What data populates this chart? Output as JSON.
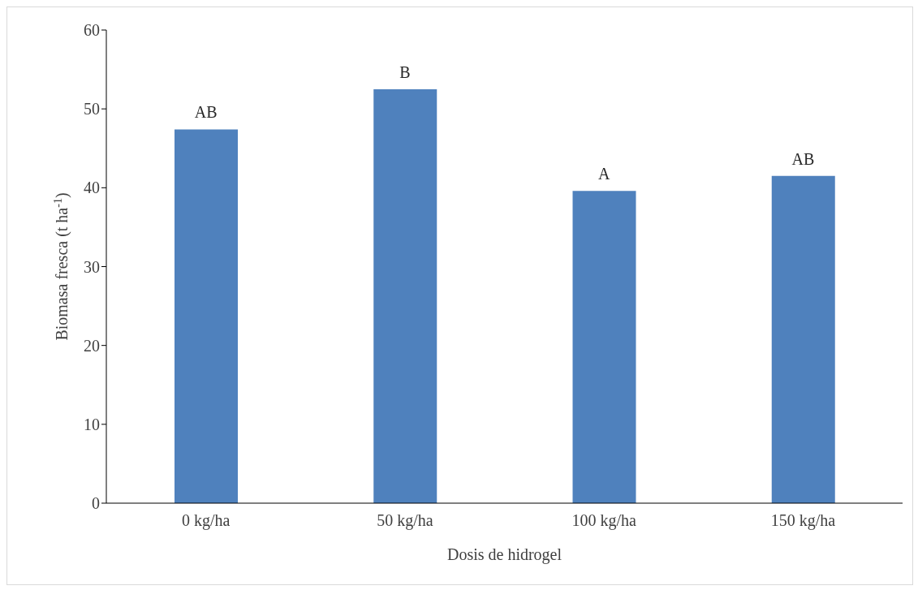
{
  "chart_data": {
    "type": "bar",
    "categories": [
      "0 kg/ha",
      "50 kg/ha",
      "100 kg/ha",
      "150 kg/ha"
    ],
    "values": [
      47.4,
      52.5,
      39.6,
      41.5
    ],
    "color": "#4f81bd",
    "xlabel": "Dosis de hidrogel",
    "ylabel": "Biomasa fresca (t ha$^{-1}$)",
    "ylim": [
      0,
      60
    ],
    "yticks": [
      0,
      10,
      20,
      30,
      40,
      50,
      60
    ],
    "grid": false,
    "legend": false,
    "annotations": [
      {
        "text": "AB",
        "x": "0 kg/ha",
        "y": 47.4
      },
      {
        "text": "B",
        "x": "50 kg/ha",
        "y": 52.5
      },
      {
        "text": "A",
        "x": "100 kg/ha",
        "y": 39.6
      },
      {
        "text": "AB",
        "x": "150 kg/ha",
        "y": 41.5
      }
    ]
  }
}
